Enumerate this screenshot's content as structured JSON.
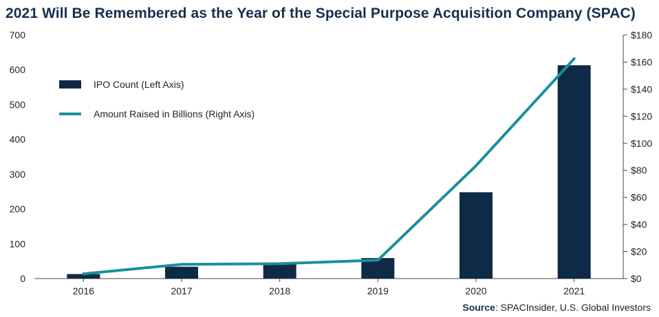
{
  "title": "2021 Will Be Remembered as the Year of the Special Purpose Acquisition Company (SPAC)",
  "source_label": "Source",
  "source_text": ": SPACInsider, U.S. Global Investors",
  "colors": {
    "bar": "#0f2a47",
    "line": "#1b8f9c",
    "title": "#14304f"
  },
  "chart_data": {
    "type": "bar",
    "categories": [
      "2016",
      "2017",
      "2018",
      "2019",
      "2020",
      "2021"
    ],
    "series": [
      {
        "name": "IPO Count (Left Axis)",
        "type": "bar",
        "axis": "left",
        "values": [
          13,
          34,
          46,
          59,
          248,
          613
        ]
      },
      {
        "name": "Amount Raised in Billions (Right Axis)",
        "type": "line",
        "axis": "right",
        "values": [
          3.5,
          10.5,
          11,
          13.6,
          83.4,
          162.5
        ]
      }
    ],
    "left_axis": {
      "ylim": [
        0,
        700
      ],
      "ticks": [
        "0",
        "100",
        "200",
        "300",
        "400",
        "500",
        "600",
        "700"
      ]
    },
    "right_axis": {
      "ylim": [
        0,
        180
      ],
      "ticks": [
        "$0",
        "$20",
        "$40",
        "$60",
        "$80",
        "$100",
        "$120",
        "$140",
        "$160",
        "$180"
      ]
    },
    "grid": false,
    "legend_position": "top-left"
  }
}
